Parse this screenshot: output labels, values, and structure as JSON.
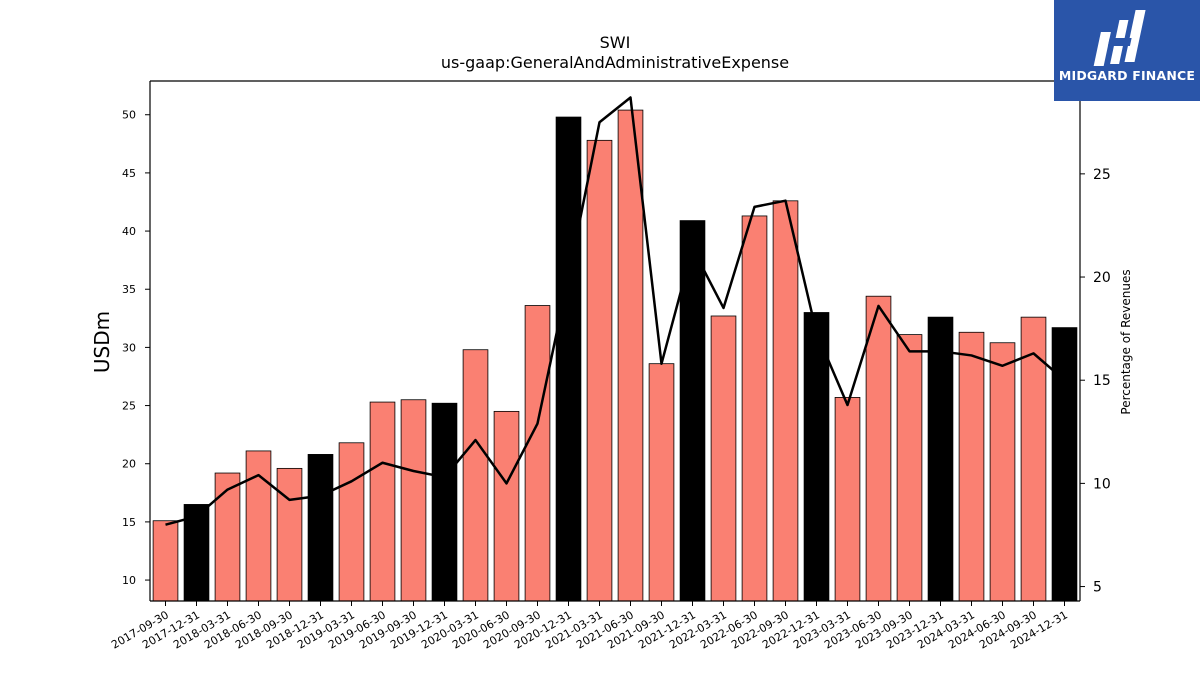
{
  "chart_data": {
    "type": "bar",
    "title": "SWI",
    "subtitle": "us-gaap:GeneralAndAdministrativeExpense",
    "ylabel": "USDm",
    "y2label": "Percentage of Revenues",
    "ylim": [
      8.2,
      52.9
    ],
    "y2lim": [
      4.3,
      29.5
    ],
    "yticks": [
      10,
      15,
      20,
      25,
      30,
      35,
      40,
      45,
      50
    ],
    "y2ticks": [
      5,
      10,
      15,
      20,
      25
    ],
    "categories": [
      "2017-09-30",
      "2017-12-31",
      "2018-03-31",
      "2018-06-30",
      "2018-09-30",
      "2018-12-31",
      "2019-03-31",
      "2019-06-30",
      "2019-09-30",
      "2019-12-31",
      "2020-03-31",
      "2020-06-30",
      "2020-09-30",
      "2020-12-31",
      "2021-03-31",
      "2021-06-30",
      "2021-09-30",
      "2021-12-31",
      "2022-03-31",
      "2022-06-30",
      "2022-09-30",
      "2022-12-31",
      "2023-03-31",
      "2023-06-30",
      "2023-09-30",
      "2023-12-31",
      "2024-03-31",
      "2024-06-30",
      "2024-09-30",
      "2024-12-31"
    ],
    "series": [
      {
        "kind": "bar",
        "values": [
          15.1,
          16.5,
          19.2,
          21.1,
          19.6,
          20.8,
          21.8,
          25.3,
          25.5,
          25.2,
          29.8,
          24.5,
          33.6,
          49.8,
          47.8,
          50.4,
          28.6,
          40.9,
          32.7,
          41.3,
          42.6,
          33.0,
          25.7,
          34.4,
          31.1,
          32.6,
          31.3,
          30.4,
          32.6,
          31.7
        ],
        "colors": [
          "#fa8072",
          "#000000",
          "#fa8072",
          "#fa8072",
          "#fa8072",
          "#000000",
          "#fa8072",
          "#fa8072",
          "#fa8072",
          "#000000",
          "#fa8072",
          "#fa8072",
          "#fa8072",
          "#000000",
          "#fa8072",
          "#fa8072",
          "#fa8072",
          "#000000",
          "#fa8072",
          "#fa8072",
          "#fa8072",
          "#000000",
          "#fa8072",
          "#fa8072",
          "#fa8072",
          "#000000",
          "#fa8072",
          "#fa8072",
          "#fa8072",
          "#000000"
        ]
      },
      {
        "kind": "line",
        "axis": "right",
        "color": "#000000",
        "values": [
          8.0,
          8.4,
          9.7,
          10.4,
          9.2,
          9.4,
          10.1,
          11.0,
          10.6,
          10.3,
          12.1,
          10.0,
          12.9,
          20.0,
          27.5,
          28.7,
          15.8,
          21.4,
          18.5,
          23.4,
          23.7,
          17.3,
          13.8,
          18.6,
          16.4,
          16.4,
          16.2,
          15.7,
          16.3,
          15.0
        ]
      }
    ],
    "colors": {
      "normal_bar": "#fa8072",
      "q4_bar": "#000000",
      "line": "#000000"
    }
  },
  "logo": {
    "text": "MIDGARD FINANCE",
    "background": "#2a55a9"
  }
}
